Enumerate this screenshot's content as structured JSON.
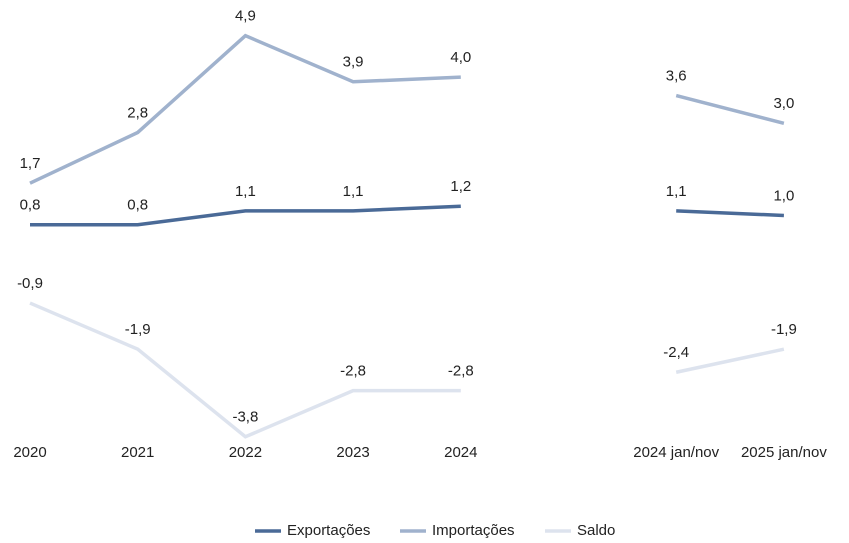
{
  "chart_data": {
    "type": "line",
    "categories": [
      "2020",
      "2021",
      "2022",
      "2023",
      "2024",
      null,
      "2024 jan/nov",
      "2025 jan/nov"
    ],
    "series": [
      {
        "name": "Exportações",
        "color": "#4a6a97",
        "values": [
          0.8,
          0.8,
          1.1,
          1.1,
          1.2,
          null,
          1.1,
          1.0
        ],
        "value_labels": [
          "0,8",
          "0,8",
          "1,1",
          "1,1",
          "1,2",
          null,
          "1,1",
          "1,0"
        ]
      },
      {
        "name": "Importações",
        "color": "#a0b2cd",
        "values": [
          1.7,
          2.8,
          4.9,
          3.9,
          4.0,
          null,
          3.6,
          3.0
        ],
        "value_labels": [
          "1,7",
          "2,8",
          "4,9",
          "3,9",
          "4,0",
          null,
          "3,6",
          "3,0"
        ]
      },
      {
        "name": "Saldo",
        "color": "#dde3ee",
        "values": [
          -0.9,
          -1.9,
          -3.8,
          -2.8,
          -2.8,
          null,
          -2.4,
          -1.9
        ],
        "value_labels": [
          "-0,9",
          "-1,9",
          "-3,8",
          "-2,8",
          "-2,8",
          null,
          "-2,4",
          "-1,9"
        ]
      }
    ],
    "ylim": [
      -4,
      5.5
    ],
    "legend": "bottom"
  }
}
